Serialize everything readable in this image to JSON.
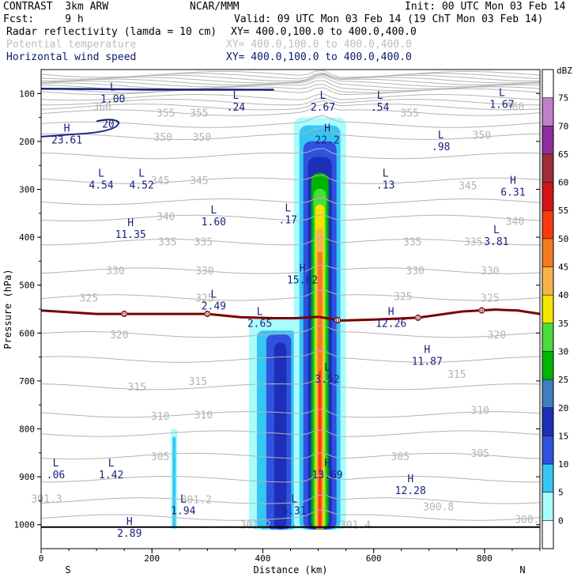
{
  "header": {
    "model": "CONTRAST  3km ARW",
    "center": "NCAR/MMM",
    "init": "Init: 00 UTC Mon 03 Feb 14",
    "fcst": "Fcst:     9 h",
    "valid": "Valid: 09 UTC Mon 03 Feb 14 (19 ChT Mon 03 Feb 14)",
    "field1": "Radar reflectivity (lamda = 10 cm)",
    "field1_xy": "XY= 400.0,100.0 to 400.0,400.0",
    "field2": "Potential temperature",
    "field2_xy": "XY= 400.0,100.0 to 400.0,400.0",
    "field3": "Horizontal wind speed",
    "field3_xy": "XY= 400.0,100.0 to 400.0,400.0"
  },
  "colors": {
    "theta": "#b4b4b4",
    "wind": "#1a237e",
    "freezing_line": "#7a0000"
  },
  "chart_data": {
    "type": "cross-section",
    "xlabel": "Distance (km)",
    "ylabel": "Pressure (hPa)",
    "xlim": [
      0,
      900
    ],
    "ylim": [
      1050,
      50
    ],
    "x_ticks": [
      "0",
      "200",
      "400",
      "600",
      "800"
    ],
    "y_ticks": [
      "100",
      "200",
      "300",
      "400",
      "500",
      "600",
      "700",
      "800",
      "900",
      "1000"
    ],
    "x_end_labels": {
      "left": "S",
      "right": "N"
    },
    "colorbar": {
      "unit": "dBZ",
      "levels": [
        "0",
        "5",
        "10",
        "15",
        "20",
        "25",
        "30",
        "35",
        "40",
        "45",
        "50",
        "55",
        "60",
        "65",
        "70",
        "75"
      ],
      "colors": [
        "#ffffff",
        "#aafcfc",
        "#36c6f4",
        "#2f52e0",
        "#1c2fb6",
        "#3f7fbf",
        "#00b400",
        "#49dc3a",
        "#f4e400",
        "#f7b34a",
        "#f47a20",
        "#f83a0c",
        "#d21414",
        "#a02d3a",
        "#8e2f9e",
        "#c080c8"
      ]
    },
    "theta_labels": [
      {
        "text": "360",
        "x": 110,
        "p": 127
      },
      {
        "text": "355",
        "x": 225,
        "p": 140
      },
      {
        "text": "355",
        "x": 285,
        "p": 140
      },
      {
        "text": "355",
        "x": 665,
        "p": 140
      },
      {
        "text": "360",
        "x": 855,
        "p": 127
      },
      {
        "text": "350",
        "x": 220,
        "p": 190
      },
      {
        "text": "350",
        "x": 290,
        "p": 190
      },
      {
        "text": "350",
        "x": 795,
        "p": 186
      },
      {
        "text": "345",
        "x": 215,
        "p": 281
      },
      {
        "text": "345",
        "x": 285,
        "p": 281
      },
      {
        "text": "345",
        "x": 770,
        "p": 292
      },
      {
        "text": "340",
        "x": 225,
        "p": 356
      },
      {
        "text": "340",
        "x": 855,
        "p": 366
      },
      {
        "text": "335",
        "x": 228,
        "p": 409
      },
      {
        "text": "335",
        "x": 293,
        "p": 409
      },
      {
        "text": "335",
        "x": 670,
        "p": 409
      },
      {
        "text": "335",
        "x": 780,
        "p": 409
      },
      {
        "text": "330",
        "x": 134,
        "p": 469
      },
      {
        "text": "330",
        "x": 295,
        "p": 469
      },
      {
        "text": "330",
        "x": 675,
        "p": 469
      },
      {
        "text": "330",
        "x": 810,
        "p": 469
      },
      {
        "text": "325",
        "x": 86,
        "p": 526
      },
      {
        "text": "325",
        "x": 295,
        "p": 526
      },
      {
        "text": "325",
        "x": 653,
        "p": 523
      },
      {
        "text": "325",
        "x": 810,
        "p": 526
      },
      {
        "text": "320",
        "x": 141,
        "p": 603
      },
      {
        "text": "320",
        "x": 822,
        "p": 603
      },
      {
        "text": "315",
        "x": 173,
        "p": 712
      },
      {
        "text": "315",
        "x": 283,
        "p": 700
      },
      {
        "text": "315",
        "x": 750,
        "p": 685
      },
      {
        "text": "310",
        "x": 215,
        "p": 773
      },
      {
        "text": "310",
        "x": 293,
        "p": 770
      },
      {
        "text": "310",
        "x": 792,
        "p": 760
      },
      {
        "text": "305",
        "x": 215,
        "p": 857
      },
      {
        "text": "305",
        "x": 648,
        "p": 857
      },
      {
        "text": "305",
        "x": 792,
        "p": 850
      },
      {
        "text": "301.3",
        "x": 10,
        "p": 945
      },
      {
        "text": "301.2",
        "x": 280,
        "p": 947
      },
      {
        "text": "301.2",
        "x": 387,
        "p": 1000
      },
      {
        "text": "301.4",
        "x": 567,
        "p": 1000
      },
      {
        "text": "300.8",
        "x": 717,
        "p": 962
      },
      {
        "text": "300.",
        "x": 877,
        "p": 988
      }
    ],
    "wind_labels": [
      {
        "kind": "L",
        "value": "1.00",
        "x": 118,
        "p": 100
      },
      {
        "kind": "L",
        "value": ".24",
        "x": 340,
        "p": 118
      },
      {
        "kind": "L",
        "value": "2.67",
        "x": 497,
        "p": 118
      },
      {
        "kind": "L",
        "value": ".54",
        "x": 600,
        "p": 118
      },
      {
        "kind": "L",
        "value": "1.67",
        "x": 820,
        "p": 112
      },
      {
        "kind": "H",
        "value": "23.61",
        "x": 35,
        "p": 186
      },
      {
        "kind": "H",
        "value": "22.2",
        "x": 505,
        "p": 186
      },
      {
        "kind": "L",
        "value": ".98",
        "x": 710,
        "p": 200
      },
      {
        "kind": "L",
        "value": "4.54",
        "x": 97,
        "p": 280
      },
      {
        "kind": "L",
        "value": "4.52",
        "x": 170,
        "p": 280
      },
      {
        "kind": "L",
        "value": ".13",
        "x": 610,
        "p": 280
      },
      {
        "kind": "H",
        "value": "6.31",
        "x": 840,
        "p": 295
      },
      {
        "kind": "L",
        "value": "1.60",
        "x": 300,
        "p": 357
      },
      {
        "kind": "L",
        "value": ".17",
        "x": 434,
        "p": 353
      },
      {
        "kind": "H",
        "value": "11.35",
        "x": 150,
        "p": 383
      },
      {
        "kind": "L",
        "value": "3.81",
        "x": 810,
        "p": 398
      },
      {
        "kind": "H",
        "value": "15.02",
        "x": 460,
        "p": 478
      },
      {
        "kind": "L",
        "value": "2.49",
        "x": 300,
        "p": 533
      },
      {
        "kind": "L",
        "value": "2.65",
        "x": 383,
        "p": 569
      },
      {
        "kind": "H",
        "value": "12.26",
        "x": 620,
        "p": 569
      },
      {
        "kind": "H",
        "value": "11.87",
        "x": 685,
        "p": 648
      },
      {
        "kind": "L",
        "value": "3.52",
        "x": 505,
        "p": 685
      },
      {
        "kind": "H",
        "value": "13.69",
        "x": 505,
        "p": 885
      },
      {
        "kind": "L",
        "value": ".06",
        "x": 15,
        "p": 885
      },
      {
        "kind": "L",
        "value": "1.42",
        "x": 115,
        "p": 885
      },
      {
        "kind": "H",
        "value": "12.28",
        "x": 655,
        "p": 918
      },
      {
        "kind": "L",
        "value": "1.94",
        "x": 245,
        "p": 960
      },
      {
        "kind": "L",
        "value": "5.31",
        "x": 445,
        "p": 960
      },
      {
        "kind": "H",
        "value": "2.89",
        "x": 148,
        "p": 1007
      }
    ],
    "wind_contour_label": {
      "text": "20",
      "x": 110,
      "p": 165
    },
    "freezing_line": {
      "x": [
        0,
        100,
        200,
        300,
        360,
        420,
        460,
        500,
        540,
        600,
        680,
        760,
        820,
        860,
        900
      ],
      "p": [
        553,
        560,
        560,
        560,
        567,
        569,
        569,
        566,
        574,
        572,
        568,
        555,
        551,
        553,
        560
      ],
      "marker_label": "0",
      "marker_x": [
        150,
        300,
        535,
        680,
        795
      ]
    },
    "reflectivity_core": {
      "x_center": 503,
      "p_top": 150,
      "p_bottom": 1010,
      "max_dbz": 50
    },
    "reflectivity_shallow": {
      "x_left": 375,
      "x_right": 470,
      "p_top": 570,
      "p_bottom": 1010
    },
    "reflectivity_small": {
      "x": 240,
      "p_top": 800,
      "p_bottom": 1010
    }
  }
}
